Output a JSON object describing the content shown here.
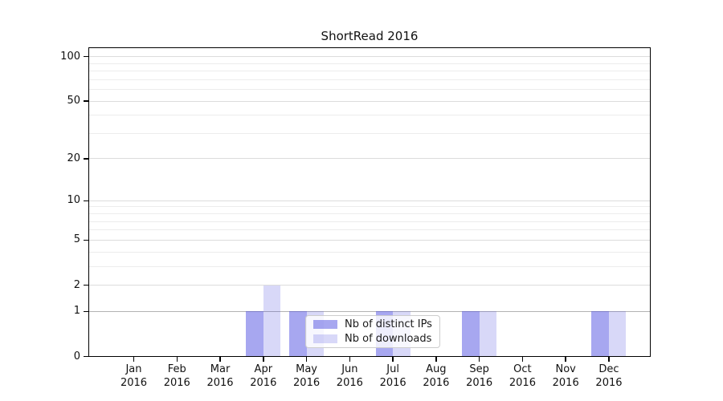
{
  "chart_data": {
    "type": "bar",
    "title": "ShortRead 2016",
    "categories": [
      "Jan",
      "Feb",
      "Mar",
      "Apr",
      "May",
      "Jun",
      "Jul",
      "Aug",
      "Sep",
      "Oct",
      "Nov",
      "Dec"
    ],
    "year_label": "2016",
    "series": [
      {
        "name": "Nb of distinct IPs",
        "color": "rgba(59,59,222,0.45)",
        "legend_swatch_hex": "#a7a7f0",
        "values": [
          0,
          0,
          0,
          1,
          1,
          0,
          1,
          0,
          1,
          0,
          0,
          1
        ]
      },
      {
        "name": "Nb of downloads",
        "color": "rgba(59,59,222,0.20)",
        "legend_swatch_hex": "#d9d9f8",
        "values": [
          0,
          0,
          0,
          2,
          1,
          0,
          1,
          0,
          1,
          0,
          0,
          1
        ]
      }
    ],
    "y_axis": {
      "scale": "log1p",
      "ticks": [
        0,
        1,
        2,
        5,
        10,
        20,
        50,
        100
      ],
      "minor_gridlines": [
        3,
        4,
        6,
        7,
        8,
        9,
        30,
        40,
        60,
        70,
        80,
        90
      ],
      "emphasis_gridline_at": 1,
      "range": [
        0,
        115
      ]
    },
    "x_axis": {
      "tick_label_lines": 2
    },
    "legend": {
      "position": "lower-center-inside",
      "background": "semi-transparent-white"
    },
    "grid": true,
    "colors": {
      "major_gridline": "#dcdcdc",
      "minor_gridline": "#ececec",
      "emphasis_gridline": "#b3b3b3",
      "axis_spine": "#000000",
      "bar_base": "#3b3bde"
    }
  }
}
